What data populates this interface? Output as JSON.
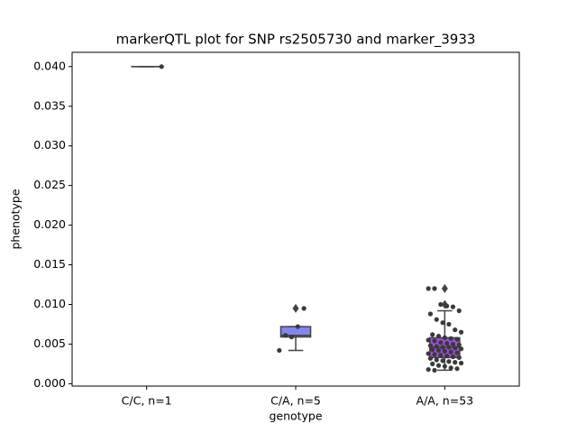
{
  "chart_data": {
    "type": "box",
    "title": "markerQTL plot for SNP rs2505730 and marker_3933",
    "xlabel": "genotype",
    "ylabel": "phenotype",
    "categories": [
      "C/C, n=1",
      "C/A, n=5",
      "A/A, n=53"
    ],
    "colors": [
      "#5a7bd6",
      "#8585f0",
      "#a24ee0"
    ],
    "ylim": [
      -0.0003,
      0.0418
    ],
    "yticks": [
      {
        "value": 0,
        "label": "0.000"
      },
      {
        "value": 0.005,
        "label": "0.005"
      },
      {
        "value": 0.01,
        "label": "0.010"
      },
      {
        "value": 0.015,
        "label": "0.015"
      },
      {
        "value": 0.02,
        "label": "0.020"
      },
      {
        "value": 0.025,
        "label": "0.025"
      },
      {
        "value": 0.03,
        "label": "0.030"
      },
      {
        "value": 0.035,
        "label": "0.035"
      },
      {
        "value": 0.04,
        "label": "0.040"
      }
    ],
    "boxes": [
      {
        "whislo": 0.04,
        "q1": 0.04,
        "median": 0.04,
        "q3": 0.04,
        "whishi": 0.04
      },
      {
        "whislo": 0.0042,
        "q1": 0.0059,
        "median": 0.0061,
        "q3": 0.0072,
        "whishi": 0.0072,
        "fliers": [
          0.0095
        ]
      },
      {
        "whislo": 0.0017,
        "q1": 0.0033,
        "median": 0.0046,
        "q3": 0.0058,
        "whishi": 0.0092,
        "fliers": [
          0.012,
          0.01
        ]
      }
    ],
    "points": [
      [
        0.04
      ],
      [
        0.0042,
        0.0061,
        0.0059,
        0.0072,
        0.0095
      ],
      [
        0.012,
        0.012,
        0.01,
        0.0098,
        0.0097,
        0.0092,
        0.0088,
        0.0081,
        0.0077,
        0.0075,
        0.0068,
        0.0065,
        0.0062,
        0.006,
        0.0058,
        0.0057,
        0.0056,
        0.0055,
        0.0054,
        0.0052,
        0.0051,
        0.005,
        0.0049,
        0.0048,
        0.0047,
        0.0046,
        0.0046,
        0.0045,
        0.0044,
        0.0043,
        0.0042,
        0.0041,
        0.004,
        0.0039,
        0.0038,
        0.0037,
        0.0036,
        0.0035,
        0.0034,
        0.0033,
        0.0032,
        0.003,
        0.0029,
        0.0028,
        0.0027,
        0.0026,
        0.0025,
        0.0023,
        0.0022,
        0.002,
        0.0019,
        0.0018,
        0.0017
      ]
    ]
  }
}
